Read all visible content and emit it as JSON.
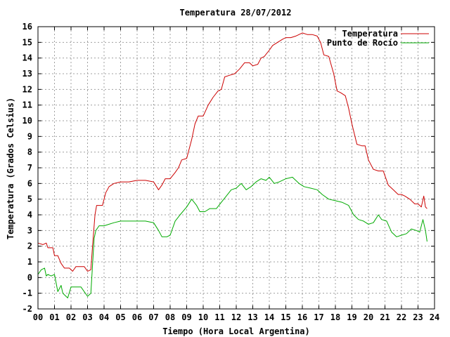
{
  "chart_data": {
    "type": "line",
    "title": "Temperatura 28/07/2012",
    "xlabel": "Tiempo (Hora Local Argentina)",
    "ylabel": "Temperatura (Grados Celsius)",
    "xlim": [
      0,
      24
    ],
    "ylim": [
      -2,
      16
    ],
    "xticks": [
      "00",
      "01",
      "02",
      "03",
      "04",
      "05",
      "06",
      "07",
      "08",
      "09",
      "10",
      "11",
      "12",
      "13",
      "14",
      "15",
      "16",
      "17",
      "18",
      "19",
      "20",
      "21",
      "22",
      "23",
      "24"
    ],
    "yticks": [
      -2,
      -1,
      0,
      1,
      2,
      3,
      4,
      5,
      6,
      7,
      8,
      9,
      10,
      11,
      12,
      13,
      14,
      15,
      16
    ],
    "grid": true,
    "legend_position": "top-right",
    "series": [
      {
        "name": "Temperatura",
        "color": "#cc0000",
        "x": [
          0,
          0.3,
          0.5,
          0.6,
          0.9,
          1.0,
          1.2,
          1.4,
          1.6,
          1.9,
          2.1,
          2.3,
          2.5,
          2.8,
          3.0,
          3.2,
          3.3,
          3.45,
          3.55,
          3.7,
          3.9,
          4.1,
          4.3,
          4.6,
          5.0,
          5.5,
          6.0,
          6.5,
          7.0,
          7.3,
          7.5,
          7.7,
          8.0,
          8.3,
          8.5,
          8.7,
          9.0,
          9.3,
          9.5,
          9.7,
          10.0,
          10.3,
          10.6,
          10.9,
          11.1,
          11.3,
          11.6,
          11.9,
          12.2,
          12.5,
          12.8,
          13.0,
          13.3,
          13.5,
          13.7,
          14.0,
          14.2,
          14.5,
          14.8,
          15.0,
          15.3,
          15.6,
          16.0,
          16.3,
          16.6,
          16.9,
          17.1,
          17.3,
          17.6,
          17.9,
          18.1,
          18.3,
          18.6,
          18.8,
          19.0,
          19.3,
          19.6,
          19.8,
          20.0,
          20.3,
          20.6,
          20.9,
          21.2,
          21.5,
          21.8,
          22.0,
          22.2,
          22.5,
          22.8,
          23.0,
          23.2,
          23.35,
          23.45,
          23.55
        ],
        "values": [
          2.2,
          2.1,
          2.2,
          1.9,
          1.9,
          1.4,
          1.4,
          0.9,
          0.6,
          0.6,
          0.4,
          0.7,
          0.7,
          0.7,
          0.4,
          0.5,
          2.0,
          4.0,
          4.6,
          4.6,
          4.6,
          5.4,
          5.8,
          6.0,
          6.1,
          6.1,
          6.2,
          6.2,
          6.1,
          5.6,
          5.9,
          6.3,
          6.3,
          6.7,
          7.0,
          7.5,
          7.6,
          8.8,
          9.8,
          10.3,
          10.3,
          11.0,
          11.5,
          11.9,
          12.0,
          12.8,
          12.9,
          13.0,
          13.3,
          13.7,
          13.7,
          13.5,
          13.6,
          14.0,
          14.1,
          14.5,
          14.8,
          15.0,
          15.2,
          15.3,
          15.3,
          15.4,
          15.6,
          15.5,
          15.5,
          15.4,
          15.0,
          14.2,
          14.1,
          13.0,
          11.9,
          11.8,
          11.6,
          10.8,
          9.8,
          8.5,
          8.4,
          8.4,
          7.5,
          6.9,
          6.8,
          6.8,
          5.9,
          5.6,
          5.3,
          5.3,
          5.2,
          5.0,
          4.7,
          4.7,
          4.5,
          5.2,
          4.5,
          4.4
        ]
      },
      {
        "name": "Punto de Rocío",
        "color": "#00aa00",
        "x": [
          0,
          0.2,
          0.4,
          0.5,
          0.6,
          0.8,
          1.0,
          1.2,
          1.4,
          1.5,
          1.6,
          1.8,
          2.0,
          2.3,
          2.6,
          3.0,
          3.2,
          3.4,
          3.5,
          3.7,
          4.0,
          4.3,
          4.6,
          5.0,
          5.5,
          6.0,
          6.5,
          7.0,
          7.3,
          7.5,
          7.8,
          8.0,
          8.3,
          8.6,
          9.0,
          9.3,
          9.6,
          9.8,
          10.1,
          10.4,
          10.8,
          11.1,
          11.4,
          11.7,
          12.0,
          12.3,
          12.6,
          12.9,
          13.2,
          13.5,
          13.8,
          14.0,
          14.3,
          14.6,
          15.0,
          15.4,
          15.8,
          16.1,
          16.5,
          16.9,
          17.2,
          17.6,
          18.0,
          18.4,
          18.8,
          19.1,
          19.4,
          19.7,
          20.0,
          20.3,
          20.6,
          20.8,
          21.1,
          21.4,
          21.7,
          22.0,
          22.3,
          22.6,
          22.9,
          23.1,
          23.3,
          23.45,
          23.55
        ],
        "values": [
          0.2,
          0.5,
          0.6,
          0.1,
          0.2,
          0.1,
          0.2,
          -0.9,
          -0.5,
          -1.0,
          -1.1,
          -1.3,
          -0.6,
          -0.6,
          -0.6,
          -1.2,
          -1.0,
          2.5,
          3.0,
          3.3,
          3.3,
          3.4,
          3.5,
          3.6,
          3.6,
          3.6,
          3.6,
          3.5,
          3.0,
          2.6,
          2.6,
          2.7,
          3.6,
          4.0,
          4.5,
          5.0,
          4.6,
          4.2,
          4.2,
          4.4,
          4.4,
          4.8,
          5.2,
          5.6,
          5.7,
          6.0,
          5.6,
          5.8,
          6.1,
          6.3,
          6.2,
          6.4,
          6.0,
          6.1,
          6.3,
          6.4,
          6.0,
          5.8,
          5.7,
          5.6,
          5.3,
          5.0,
          4.9,
          4.8,
          4.6,
          4.0,
          3.7,
          3.6,
          3.4,
          3.5,
          4.0,
          3.7,
          3.6,
          2.9,
          2.6,
          2.7,
          2.8,
          3.1,
          3.0,
          2.9,
          3.7,
          3.0,
          2.3
        ]
      }
    ]
  }
}
